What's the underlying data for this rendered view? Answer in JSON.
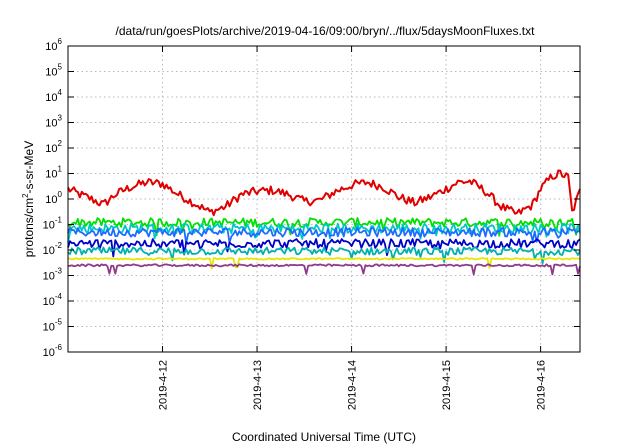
{
  "chart_data": {
    "type": "line",
    "title": "/data/run/goesPlots/archive/2019-04-16/09:00/bryn/../flux/5daysMoonFluxes.txt",
    "xlabel": "Coordinated Universal Time (UTC)",
    "ylabel_parts": {
      "before": "protons/cm",
      "sup": "2",
      "after": "-s-sr-MeV"
    },
    "y_scale": "log",
    "ylim": [
      1e-06,
      1000000.0
    ],
    "y_tick_exponents": [
      -6,
      -5,
      -4,
      -3,
      -2,
      -1,
      0,
      1,
      2,
      3,
      4,
      5,
      6
    ],
    "y_tick_base": "10",
    "xlim": [
      "2019-04-11T00:00",
      "2019-04-16T10:00"
    ],
    "x_tick_labels": [
      "2019-4-12",
      "2019-4-13",
      "2019-4-14",
      "2019-4-15",
      "2019-4-16"
    ],
    "x_tick_dates": [
      "2019-04-12T00:00",
      "2019-04-13T00:00",
      "2019-04-14T00:00",
      "2019-04-15T00:00",
      "2019-04-16T00:00"
    ],
    "grid": true,
    "series": [
      {
        "color": "#e00000",
        "x": [
          "2019-04-11T00:00",
          "2019-04-11T03:00",
          "2019-04-11T06:00",
          "2019-04-11T09:00",
          "2019-04-11T12:00",
          "2019-04-11T16:00",
          "2019-04-11T20:00",
          "2019-04-12T00:00",
          "2019-04-12T04:00",
          "2019-04-12T08:00",
          "2019-04-12T12:00",
          "2019-04-12T16:00",
          "2019-04-12T20:00",
          "2019-04-13T00:00",
          "2019-04-13T04:00",
          "2019-04-13T08:00",
          "2019-04-13T12:00",
          "2019-04-13T16:00",
          "2019-04-13T20:00",
          "2019-04-14T00:00",
          "2019-04-14T04:00",
          "2019-04-14T08:00",
          "2019-04-14T12:00",
          "2019-04-14T16:00",
          "2019-04-14T20:00",
          "2019-04-15T00:00",
          "2019-04-15T03:00",
          "2019-04-15T06:00",
          "2019-04-15T10:00",
          "2019-04-15T14:00",
          "2019-04-15T18:00",
          "2019-04-15T22:00",
          "2019-04-16T00:00",
          "2019-04-16T03:00",
          "2019-04-16T05:00",
          "2019-04-16T07:00",
          "2019-04-16T08:00",
          "2019-04-16T10:00"
        ],
        "values": [
          2.5,
          1.5,
          1.0,
          0.6,
          1.5,
          3.0,
          4.5,
          4.0,
          1.5,
          0.7,
          0.3,
          0.5,
          1.5,
          2.0,
          2.2,
          1.5,
          0.8,
          0.9,
          2.0,
          3.5,
          4.5,
          3.0,
          1.2,
          0.7,
          1.2,
          2.5,
          4.5,
          5.0,
          2.0,
          0.5,
          0.25,
          0.6,
          2.5,
          8.0,
          10.0,
          7.0,
          0.3,
          2.0
        ]
      },
      {
        "color": "#00e000",
        "x": [
          "2019-04-11T00:00",
          "2019-04-16T10:00"
        ],
        "values": [
          0.12,
          0.12
        ]
      },
      {
        "color": "#00c8c8",
        "x": [
          "2019-04-11T00:00",
          "2019-04-16T10:00"
        ],
        "values": [
          0.07,
          0.07
        ]
      },
      {
        "color": "#1e6cff",
        "x": [
          "2019-04-11T00:00",
          "2019-04-16T10:00"
        ],
        "values": [
          0.05,
          0.05
        ]
      },
      {
        "color": "#0000c8",
        "x": [
          "2019-04-11T00:00",
          "2019-04-16T10:00"
        ],
        "values": [
          0.018,
          0.018
        ]
      },
      {
        "color": "#00b0b0",
        "x": [
          "2019-04-11T00:00",
          "2019-04-16T10:00"
        ],
        "values": [
          0.009,
          0.009
        ]
      },
      {
        "color": "#e6e600",
        "x": [
          "2019-04-11T00:00",
          "2019-04-16T10:00"
        ],
        "values": [
          0.0045,
          0.0045
        ]
      },
      {
        "color": "#8e3a8a",
        "x": [
          "2019-04-11T00:00",
          "2019-04-16T10:00"
        ],
        "values": [
          0.0025,
          0.0025
        ]
      }
    ]
  }
}
